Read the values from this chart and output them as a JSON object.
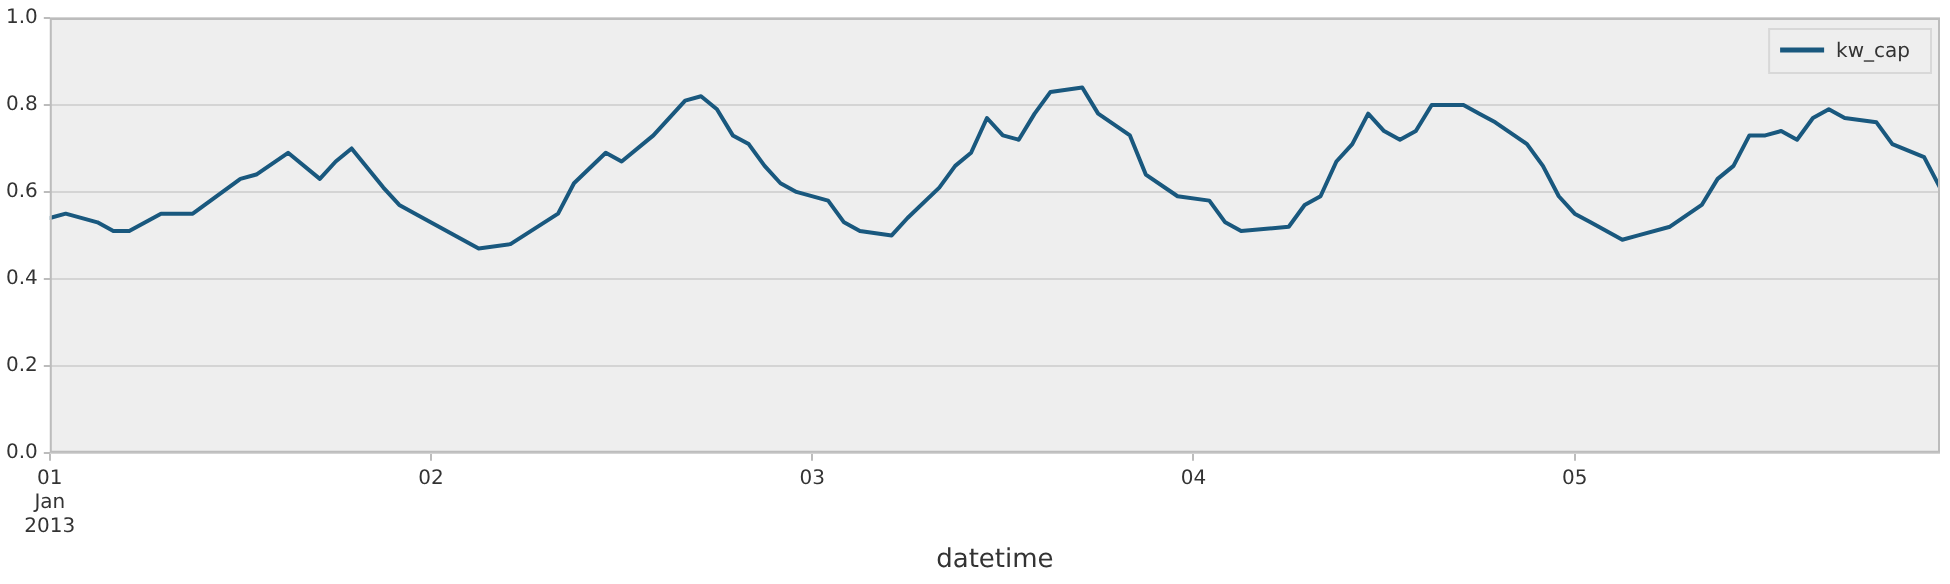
{
  "chart_data": {
    "type": "line",
    "xlabel": "datetime",
    "legend": "top right",
    "grid": "y",
    "marker": "none",
    "line_style": "solid",
    "xlim": [
      "2013-01-01T00:00",
      "2013-01-05T23:00"
    ],
    "xticks": [
      {
        "value": "2013-01-01",
        "label": "01\nJan\n2013"
      },
      {
        "value": "2013-01-02",
        "label": "02"
      },
      {
        "value": "2013-01-03",
        "label": "03"
      },
      {
        "value": "2013-01-04",
        "label": "04"
      },
      {
        "value": "2013-01-05",
        "label": "05"
      }
    ],
    "ylim": [
      0,
      1
    ],
    "yticks": [
      {
        "value": 0,
        "label": "0.0"
      },
      {
        "value": 0.2,
        "label": "0.2"
      },
      {
        "value": 0.4,
        "label": "0.4"
      },
      {
        "value": 0.6,
        "label": "0.6"
      },
      {
        "value": 0.8,
        "label": "0.8"
      },
      {
        "value": 1,
        "label": "1.0"
      }
    ],
    "x": [
      "2013-01-01T00:00",
      "2013-01-01T01:00",
      "2013-01-01T03:00",
      "2013-01-01T04:00",
      "2013-01-01T05:00",
      "2013-01-01T07:00",
      "2013-01-01T09:00",
      "2013-01-01T12:00",
      "2013-01-01T13:00",
      "2013-01-01T15:00",
      "2013-01-01T17:00",
      "2013-01-01T18:00",
      "2013-01-01T19:00",
      "2013-01-01T21:00",
      "2013-01-01T22:00",
      "2013-01-01T23:00",
      "2013-01-02T03:00",
      "2013-01-02T05:00",
      "2013-01-02T08:00",
      "2013-01-02T09:00",
      "2013-01-02T11:00",
      "2013-01-02T12:00",
      "2013-01-02T14:00",
      "2013-01-02T16:00",
      "2013-01-02T17:00",
      "2013-01-02T18:00",
      "2013-01-02T19:00",
      "2013-01-02T20:00",
      "2013-01-02T21:00",
      "2013-01-02T22:00",
      "2013-01-02T23:00",
      "2013-01-03T01:00",
      "2013-01-03T02:00",
      "2013-01-03T03:00",
      "2013-01-03T05:00",
      "2013-01-03T06:00",
      "2013-01-03T08:00",
      "2013-01-03T09:00",
      "2013-01-03T10:00",
      "2013-01-03T11:00",
      "2013-01-03T12:00",
      "2013-01-03T13:00",
      "2013-01-03T14:00",
      "2013-01-03T15:00",
      "2013-01-03T17:00",
      "2013-01-03T18:00",
      "2013-01-03T20:00",
      "2013-01-03T21:00",
      "2013-01-03T23:00",
      "2013-01-04T01:00",
      "2013-01-04T02:00",
      "2013-01-04T03:00",
      "2013-01-04T06:00",
      "2013-01-04T07:00",
      "2013-01-04T08:00",
      "2013-01-04T09:00",
      "2013-01-04T10:00",
      "2013-01-04T11:00",
      "2013-01-04T12:00",
      "2013-01-04T13:00",
      "2013-01-04T14:00",
      "2013-01-04T15:00",
      "2013-01-04T17:00",
      "2013-01-04T18:00",
      "2013-01-04T19:00",
      "2013-01-04T21:00",
      "2013-01-04T22:00",
      "2013-01-04T23:00",
      "2013-01-05T00:00",
      "2013-01-05T01:00",
      "2013-01-05T03:00",
      "2013-01-05T04:00",
      "2013-01-05T06:00",
      "2013-01-05T08:00",
      "2013-01-05T09:00",
      "2013-01-05T10:00",
      "2013-01-05T11:00",
      "2013-01-05T12:00",
      "2013-01-05T13:00",
      "2013-01-05T14:00",
      "2013-01-05T15:00",
      "2013-01-05T16:00",
      "2013-01-05T17:00",
      "2013-01-05T19:00",
      "2013-01-05T20:00",
      "2013-01-05T22:00",
      "2013-01-05T23:00"
    ],
    "series": [
      {
        "name": "kw_cap",
        "color": "#19587e",
        "values": [
          0.54,
          0.55,
          0.53,
          0.51,
          0.51,
          0.55,
          0.55,
          0.63,
          0.64,
          0.69,
          0.63,
          0.67,
          0.7,
          0.61,
          0.57,
          0.55,
          0.47,
          0.48,
          0.55,
          0.62,
          0.69,
          0.67,
          0.73,
          0.81,
          0.82,
          0.79,
          0.73,
          0.71,
          0.66,
          0.62,
          0.6,
          0.58,
          0.53,
          0.51,
          0.5,
          0.54,
          0.61,
          0.66,
          0.69,
          0.77,
          0.73,
          0.72,
          0.78,
          0.83,
          0.84,
          0.78,
          0.73,
          0.64,
          0.59,
          0.58,
          0.53,
          0.51,
          0.52,
          0.57,
          0.59,
          0.67,
          0.71,
          0.78,
          0.74,
          0.72,
          0.74,
          0.8,
          0.8,
          0.78,
          0.76,
          0.71,
          0.66,
          0.59,
          0.55,
          0.53,
          0.49,
          0.5,
          0.52,
          0.57,
          0.63,
          0.66,
          0.73,
          0.73,
          0.74,
          0.72,
          0.77,
          0.79,
          0.77,
          0.76,
          0.71,
          0.68,
          0.61
        ]
      }
    ]
  }
}
